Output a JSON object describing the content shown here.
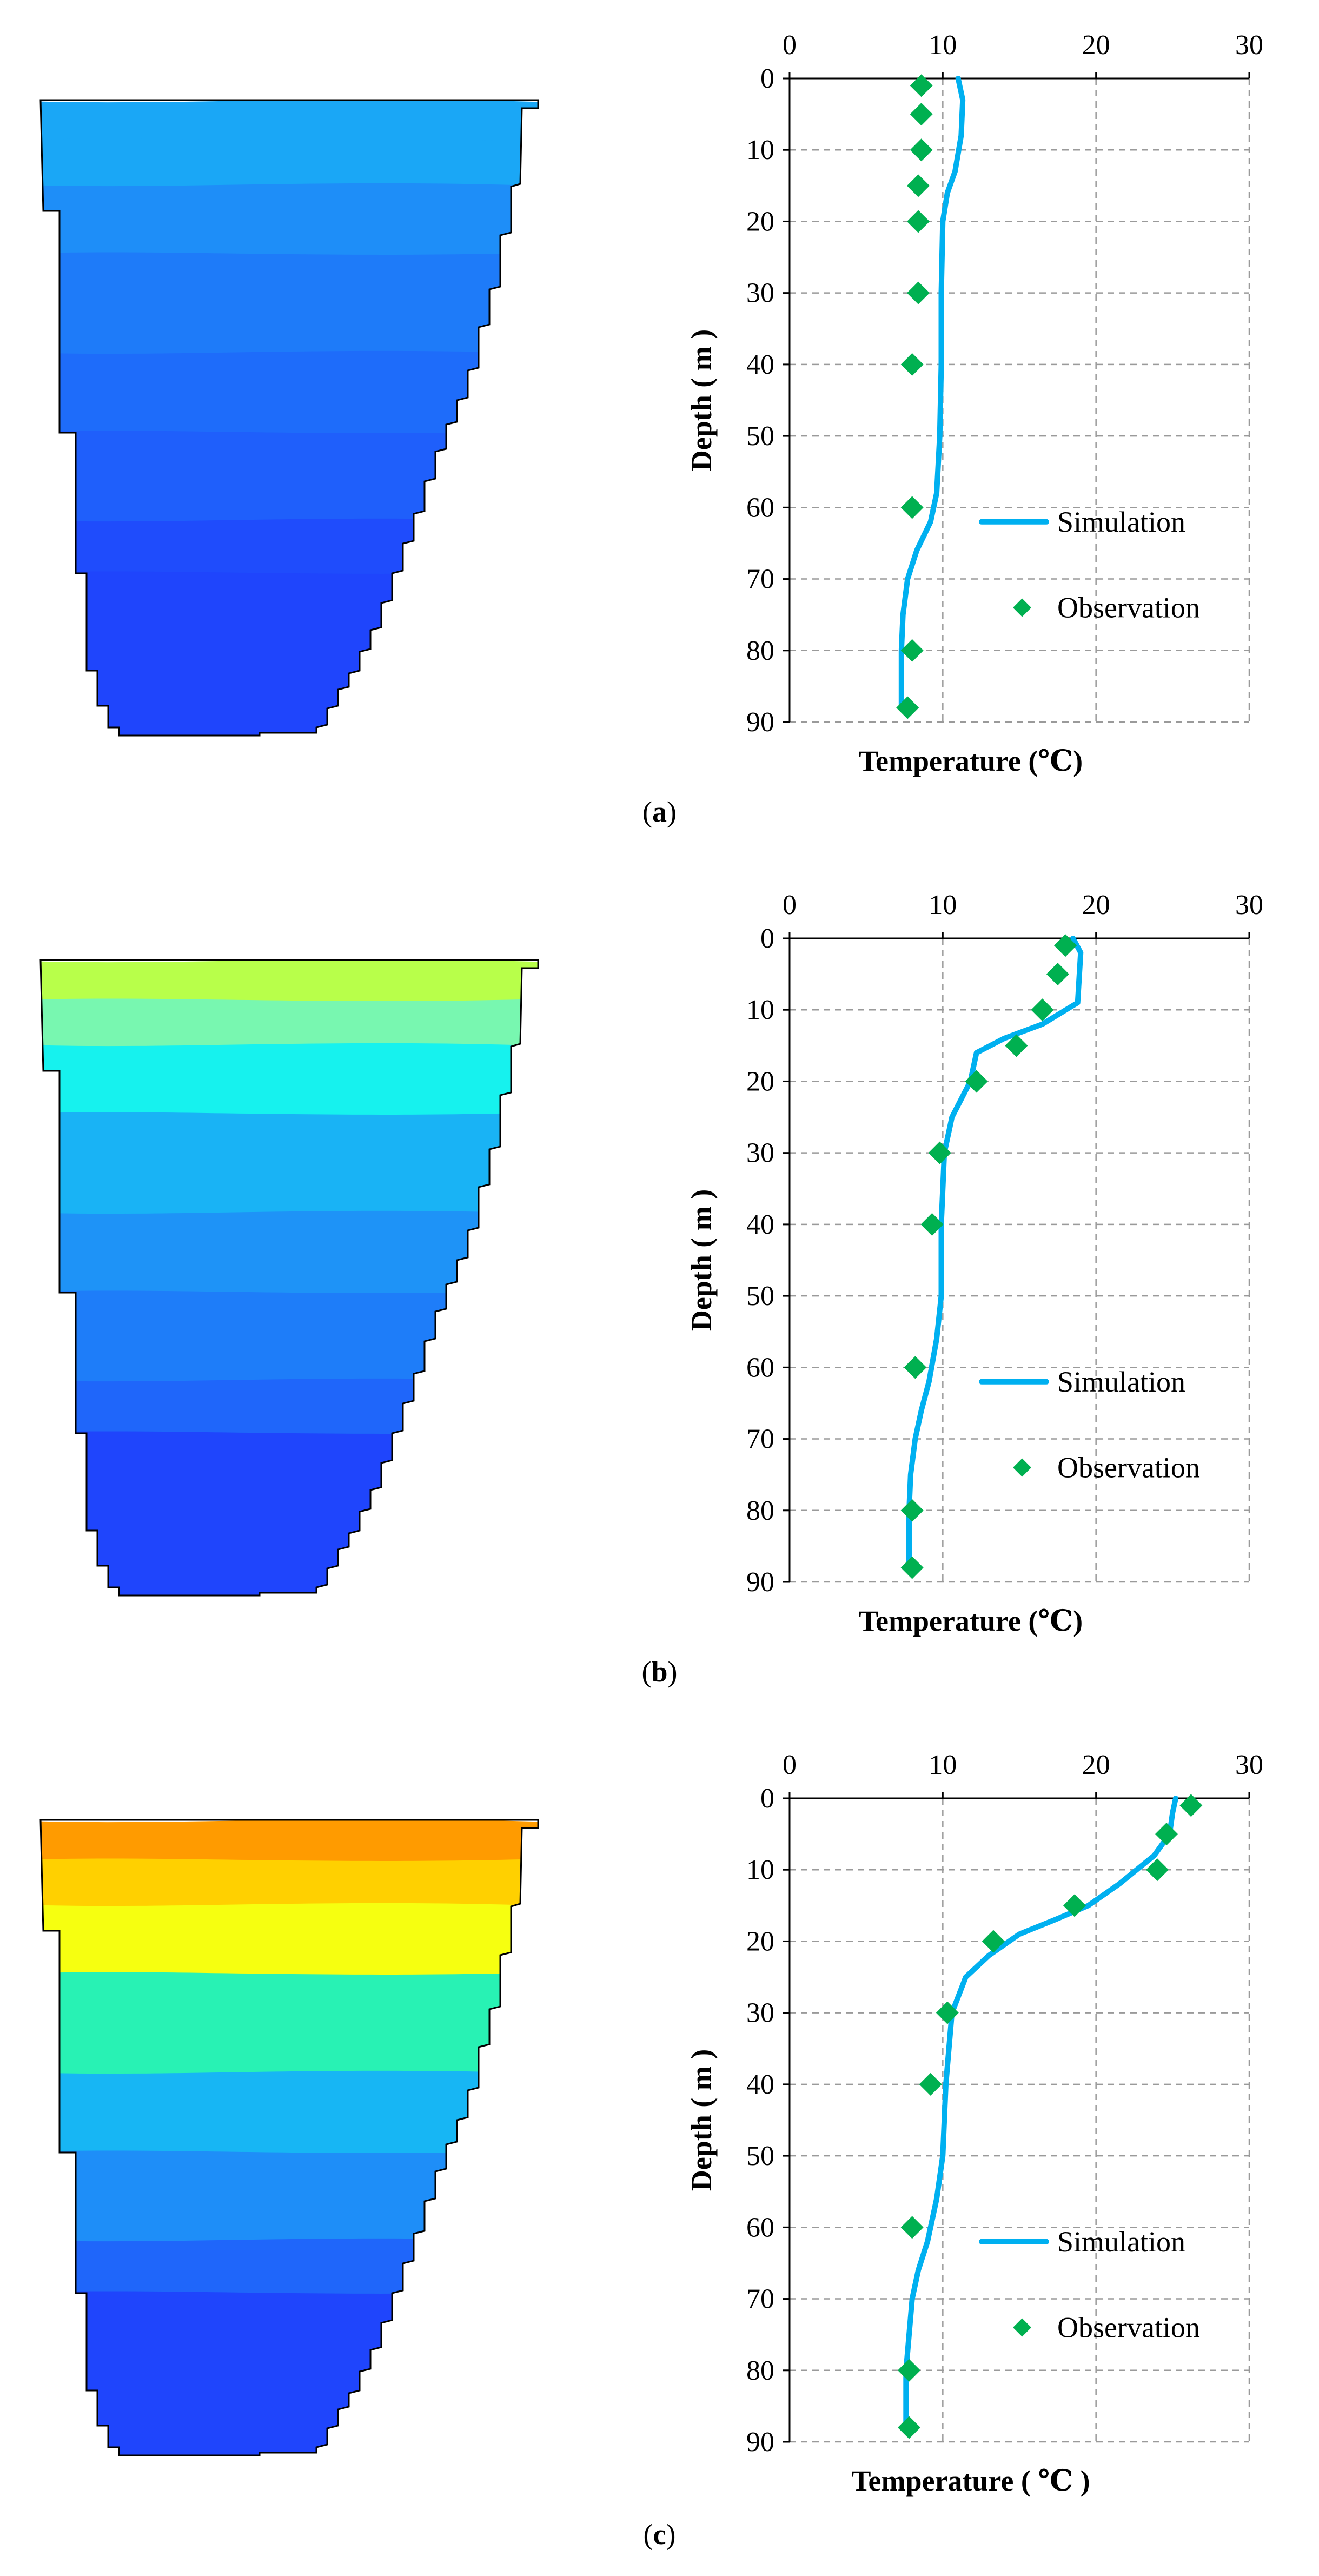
{
  "colors": {
    "simulation": "#00B0F0",
    "observation": "#00B050",
    "grid": "#9a9a9a",
    "axis": "#000000"
  },
  "panels": [
    {
      "caption_open": "(",
      "caption_letter": "a",
      "caption_close": ")",
      "profile_colors": [
        "#1aa7f6",
        "#1aa7f6",
        "#1e8ef8",
        "#1e7bf9",
        "#1e6cfa",
        "#1f5ffb",
        "#1f4cfc",
        "#1f45fc"
      ],
      "chart": {
        "type": "line",
        "xlabel": "Temperature (℃)",
        "ylabel": "Depth ( m )",
        "xticks": [
          "0",
          "10",
          "20",
          "30"
        ],
        "yticks": [
          "0",
          "10",
          "20",
          "30",
          "40",
          "50",
          "60",
          "70",
          "80",
          "90"
        ],
        "xlim": [
          0,
          30
        ],
        "ylim": [
          0,
          90
        ],
        "legend": [
          "Simulation",
          "Observation"
        ]
      }
    },
    {
      "caption_open": "(",
      "caption_letter": "b",
      "caption_close": ")",
      "profile_colors": [
        "#b8ff4a",
        "#78f7b0",
        "#16f2ee",
        "#19b3f5",
        "#1e93f7",
        "#1e7df9",
        "#1f66fa",
        "#1f45fc"
      ],
      "chart": {
        "type": "line",
        "xlabel": "Temperature (℃)",
        "ylabel": "Depth ( m )",
        "xticks": [
          "0",
          "10",
          "20",
          "30"
        ],
        "yticks": [
          "0",
          "10",
          "20",
          "30",
          "40",
          "50",
          "60",
          "70",
          "80",
          "90"
        ],
        "xlim": [
          0,
          30
        ],
        "ylim": [
          0,
          90
        ],
        "legend": [
          "Simulation",
          "Observation"
        ]
      }
    },
    {
      "caption_open": "(",
      "caption_letter": "c",
      "caption_close": ")",
      "profile_colors": [
        "#ff9b00",
        "#ffd000",
        "#f6ff10",
        "#28f2b4",
        "#17b6f4",
        "#1e8ef8",
        "#1f66fa",
        "#1f45fc"
      ],
      "chart": {
        "type": "line",
        "xlabel": "Temperature ( ℃ )",
        "ylabel": "Depth ( m )",
        "xticks": [
          "0",
          "10",
          "20",
          "30"
        ],
        "yticks": [
          "0",
          "10",
          "20",
          "30",
          "40",
          "50",
          "60",
          "70",
          "80",
          "90"
        ],
        "xlim": [
          0,
          30
        ],
        "ylim": [
          0,
          90
        ],
        "legend": [
          "Simulation",
          "Observation"
        ]
      }
    }
  ],
  "chart_data": [
    {
      "type": "line",
      "title": "(a)",
      "xlabel": "Temperature (℃)",
      "ylabel": "Depth ( m )",
      "xlim": [
        0,
        30
      ],
      "ylim": [
        0,
        90
      ],
      "series": [
        {
          "name": "Simulation",
          "points": [
            [
              11,
              0
            ],
            [
              11.3,
              3
            ],
            [
              11.2,
              8
            ],
            [
              10.8,
              13
            ],
            [
              10.3,
              16
            ],
            [
              10,
              20
            ],
            [
              9.9,
              30
            ],
            [
              9.9,
              40
            ],
            [
              9.8,
              50
            ],
            [
              9.6,
              58
            ],
            [
              9.2,
              62
            ],
            [
              8.3,
              66
            ],
            [
              7.7,
              70
            ],
            [
              7.4,
              75
            ],
            [
              7.3,
              80
            ],
            [
              7.3,
              88
            ]
          ]
        },
        {
          "name": "Observation",
          "points": [
            [
              8.6,
              1
            ],
            [
              8.6,
              5
            ],
            [
              8.6,
              10
            ],
            [
              8.4,
              15
            ],
            [
              8.4,
              20
            ],
            [
              8.4,
              30
            ],
            [
              8,
              40
            ],
            [
              8,
              60
            ],
            [
              8,
              80
            ],
            [
              7.7,
              88
            ]
          ]
        }
      ]
    },
    {
      "type": "line",
      "title": "(b)",
      "xlabel": "Temperature (℃)",
      "ylabel": "Depth ( m )",
      "xlim": [
        0,
        30
      ],
      "ylim": [
        0,
        90
      ],
      "series": [
        {
          "name": "Simulation",
          "points": [
            [
              18.5,
              0
            ],
            [
              19,
              2
            ],
            [
              18.8,
              9
            ],
            [
              16.5,
              12
            ],
            [
              14,
              14
            ],
            [
              12.2,
              16
            ],
            [
              11.8,
              20
            ],
            [
              10.6,
              25
            ],
            [
              10.1,
              30
            ],
            [
              9.9,
              40
            ],
            [
              9.9,
              50
            ],
            [
              9.6,
              56
            ],
            [
              9.1,
              62
            ],
            [
              8.6,
              66
            ],
            [
              8.2,
              70
            ],
            [
              7.9,
              75
            ],
            [
              7.8,
              80
            ],
            [
              7.8,
              88
            ]
          ]
        },
        {
          "name": "Observation",
          "points": [
            [
              18,
              1
            ],
            [
              17.5,
              5
            ],
            [
              16.5,
              10
            ],
            [
              14.8,
              15
            ],
            [
              12.2,
              20
            ],
            [
              9.8,
              30
            ],
            [
              9.3,
              40
            ],
            [
              8.2,
              60
            ],
            [
              8,
              80
            ],
            [
              8,
              88
            ]
          ]
        }
      ]
    },
    {
      "type": "line",
      "title": "(c)",
      "xlabel": "Temperature ( ℃ )",
      "ylabel": "Depth ( m )",
      "xlim": [
        0,
        30
      ],
      "ylim": [
        0,
        90
      ],
      "series": [
        {
          "name": "Simulation",
          "points": [
            [
              25.2,
              0
            ],
            [
              25,
              2
            ],
            [
              24.8,
              5
            ],
            [
              23.8,
              8
            ],
            [
              21.5,
              12
            ],
            [
              19.5,
              15
            ],
            [
              17.3,
              17
            ],
            [
              15,
              19
            ],
            [
              13,
              22
            ],
            [
              11.5,
              25
            ],
            [
              10.6,
              30
            ],
            [
              10.2,
              40
            ],
            [
              10,
              50
            ],
            [
              9.6,
              56
            ],
            [
              9,
              62
            ],
            [
              8.4,
              66
            ],
            [
              8,
              70
            ],
            [
              7.8,
              75
            ],
            [
              7.6,
              80
            ],
            [
              7.6,
              88
            ]
          ]
        },
        {
          "name": "Observation",
          "points": [
            [
              26.2,
              1
            ],
            [
              24.6,
              5
            ],
            [
              24,
              10
            ],
            [
              18.6,
              15
            ],
            [
              13.3,
              20
            ],
            [
              10.3,
              30
            ],
            [
              9.2,
              40
            ],
            [
              8,
              60
            ],
            [
              7.8,
              80
            ],
            [
              7.8,
              88
            ]
          ]
        }
      ]
    }
  ]
}
